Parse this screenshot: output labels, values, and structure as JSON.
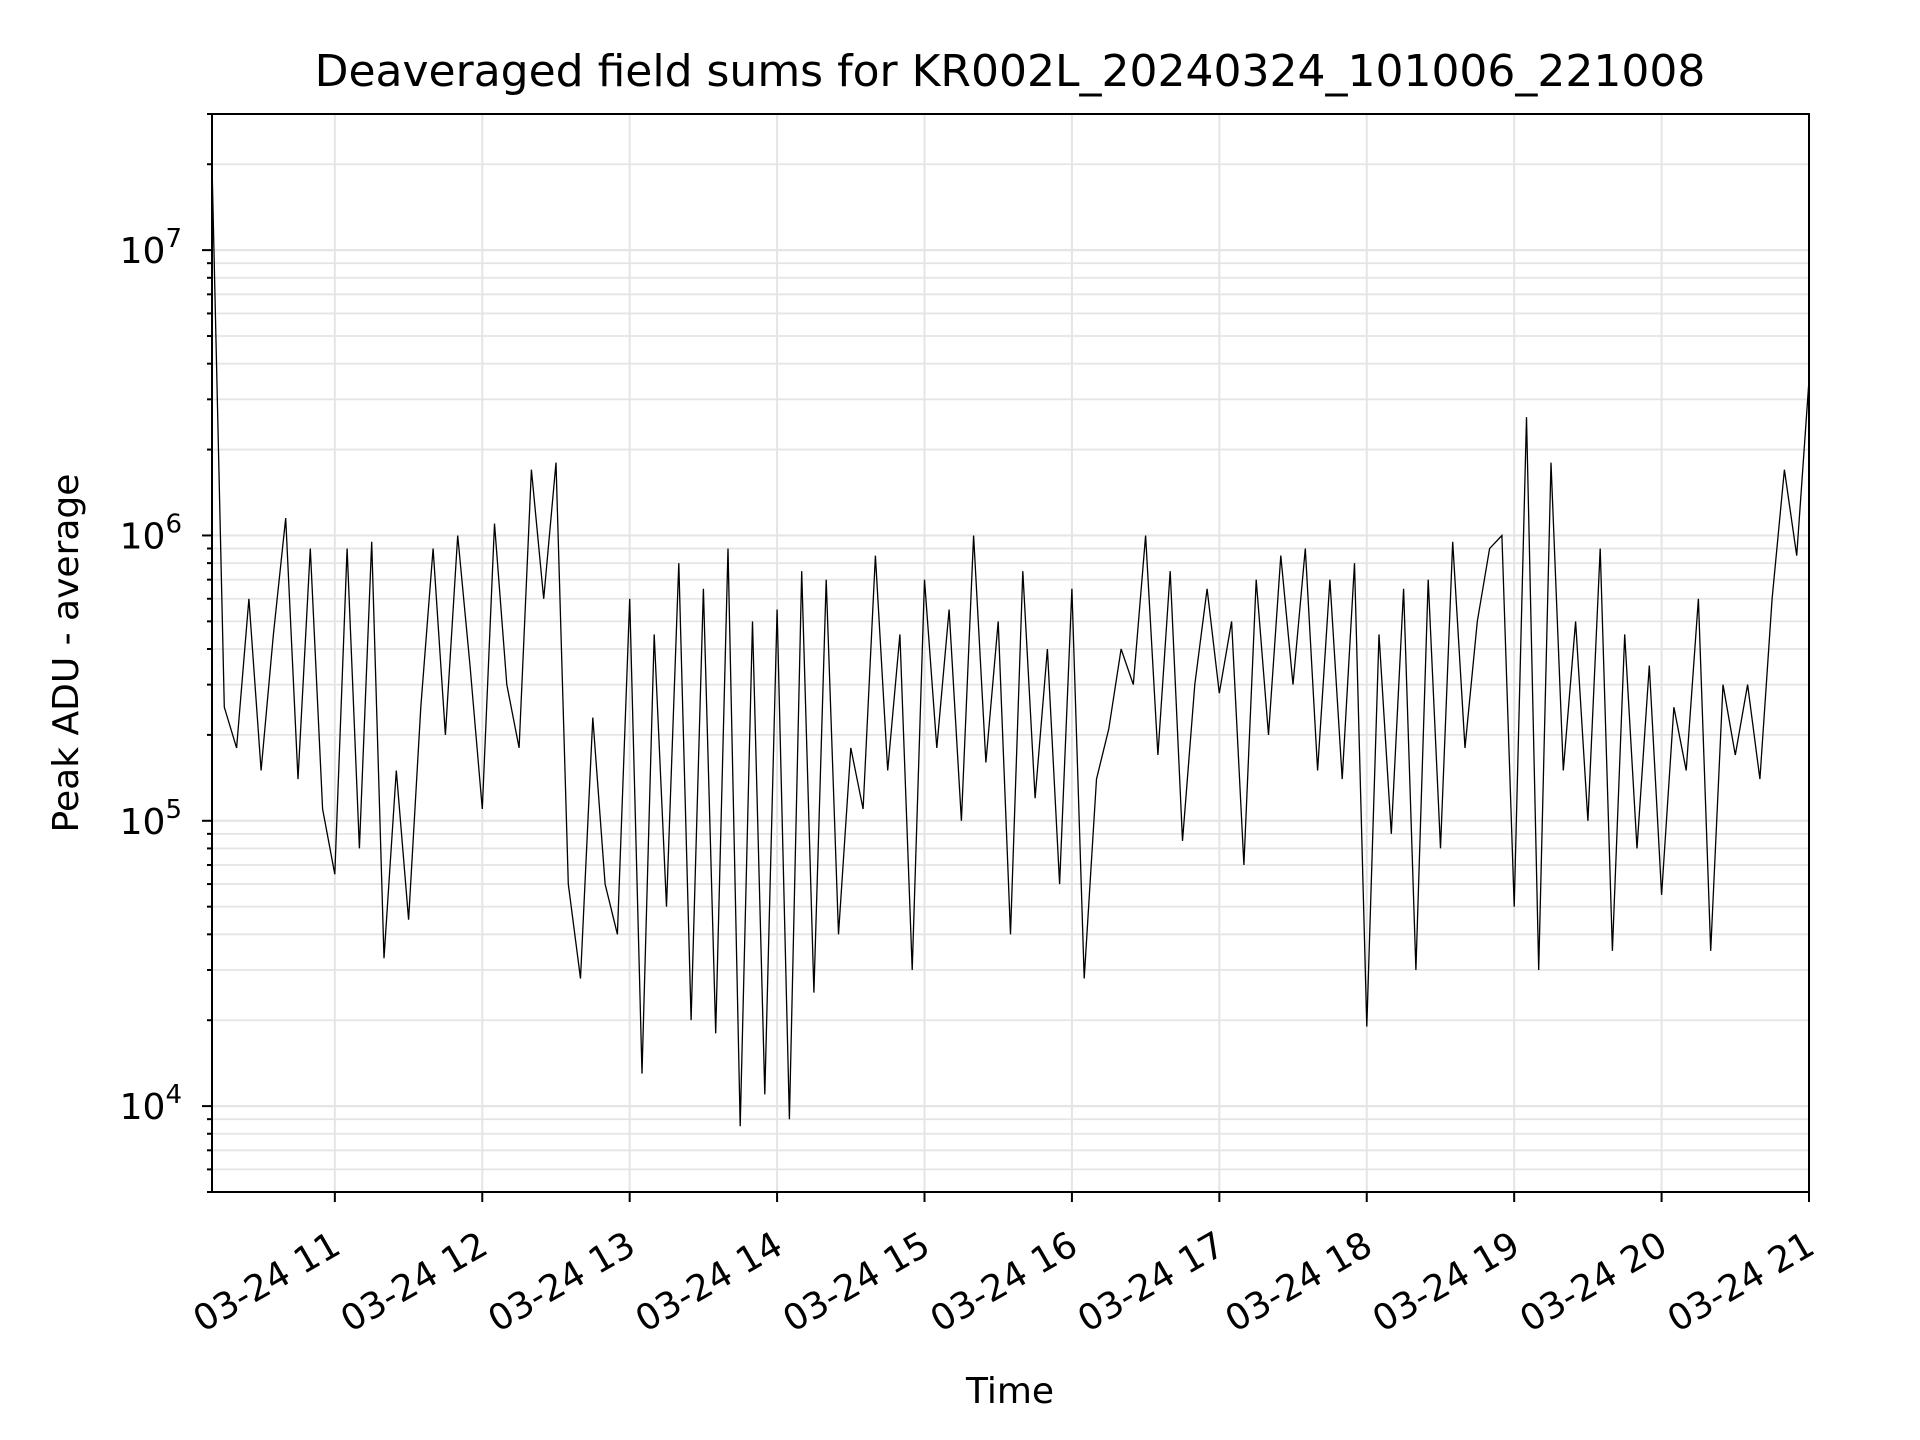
{
  "chart_data": {
    "type": "line",
    "title": "Deaveraged field sums for KR002L_20240324_101006_221008",
    "xlabel": "Time",
    "ylabel": "Peak ADU - average",
    "yscale": "log",
    "ylim": [
      5000,
      30000000
    ],
    "xlim": [
      "2024-03-24 10:10",
      "2024-03-24 21:00"
    ],
    "grid": true,
    "x_ticks": [
      "2024-03-24 11:00",
      "2024-03-24 12:00",
      "2024-03-24 13:00",
      "2024-03-24 14:00",
      "2024-03-24 15:00",
      "2024-03-24 16:00",
      "2024-03-24 17:00",
      "2024-03-24 18:00",
      "2024-03-24 19:00",
      "2024-03-24 20:00",
      "2024-03-24 21:00"
    ],
    "x_tick_labels": [
      "03-24 11",
      "03-24 12",
      "03-24 13",
      "03-24 14",
      "03-24 15",
      "03-24 16",
      "03-24 17",
      "03-24 18",
      "03-24 19",
      "03-24 20",
      "03-24 21"
    ],
    "y_ticks": [
      {
        "value": 10000,
        "base": "10",
        "exp": "4"
      },
      {
        "value": 100000,
        "base": "10",
        "exp": "5"
      },
      {
        "value": 1000000,
        "base": "10",
        "exp": "6"
      },
      {
        "value": 10000000,
        "base": "10",
        "exp": "7"
      }
    ],
    "line_color": "#000000",
    "grid_color": "#e5e5e5",
    "series": [
      {
        "x": [
          "2024-03-24 10:10",
          "2024-03-24 10:15",
          "2024-03-24 10:20",
          "2024-03-24 10:25",
          "2024-03-24 10:30",
          "2024-03-24 10:35",
          "2024-03-24 10:40",
          "2024-03-24 10:45",
          "2024-03-24 10:50",
          "2024-03-24 10:55",
          "2024-03-24 11:00",
          "2024-03-24 11:05",
          "2024-03-24 11:10",
          "2024-03-24 11:15",
          "2024-03-24 11:20",
          "2024-03-24 11:25",
          "2024-03-24 11:30",
          "2024-03-24 11:35",
          "2024-03-24 11:40",
          "2024-03-24 11:45",
          "2024-03-24 11:50",
          "2024-03-24 11:55",
          "2024-03-24 12:00",
          "2024-03-24 12:05",
          "2024-03-24 12:10",
          "2024-03-24 12:15",
          "2024-03-24 12:20",
          "2024-03-24 12:25",
          "2024-03-24 12:30",
          "2024-03-24 12:35",
          "2024-03-24 12:40",
          "2024-03-24 12:45",
          "2024-03-24 12:50",
          "2024-03-24 12:55",
          "2024-03-24 13:00",
          "2024-03-24 13:05",
          "2024-03-24 13:10",
          "2024-03-24 13:15",
          "2024-03-24 13:20",
          "2024-03-24 13:25",
          "2024-03-24 13:30",
          "2024-03-24 13:35",
          "2024-03-24 13:40",
          "2024-03-24 13:45",
          "2024-03-24 13:50",
          "2024-03-24 13:55",
          "2024-03-24 14:00",
          "2024-03-24 14:05",
          "2024-03-24 14:10",
          "2024-03-24 14:15",
          "2024-03-24 14:20",
          "2024-03-24 14:25",
          "2024-03-24 14:30",
          "2024-03-24 14:35",
          "2024-03-24 14:40",
          "2024-03-24 14:45",
          "2024-03-24 14:50",
          "2024-03-24 14:55",
          "2024-03-24 15:00",
          "2024-03-24 15:05",
          "2024-03-24 15:10",
          "2024-03-24 15:15",
          "2024-03-24 15:20",
          "2024-03-24 15:25",
          "2024-03-24 15:30",
          "2024-03-24 15:35",
          "2024-03-24 15:40",
          "2024-03-24 15:45",
          "2024-03-24 15:50",
          "2024-03-24 15:55",
          "2024-03-24 16:00",
          "2024-03-24 16:05",
          "2024-03-24 16:10",
          "2024-03-24 16:15",
          "2024-03-24 16:20",
          "2024-03-24 16:25",
          "2024-03-24 16:30",
          "2024-03-24 16:35",
          "2024-03-24 16:40",
          "2024-03-24 16:45",
          "2024-03-24 16:50",
          "2024-03-24 16:55",
          "2024-03-24 17:00",
          "2024-03-24 17:05",
          "2024-03-24 17:10",
          "2024-03-24 17:15",
          "2024-03-24 17:20",
          "2024-03-24 17:25",
          "2024-03-24 17:30",
          "2024-03-24 17:35",
          "2024-03-24 17:40",
          "2024-03-24 17:45",
          "2024-03-24 17:50",
          "2024-03-24 17:55",
          "2024-03-24 18:00",
          "2024-03-24 18:05",
          "2024-03-24 18:10",
          "2024-03-24 18:15",
          "2024-03-24 18:20",
          "2024-03-24 18:25",
          "2024-03-24 18:30",
          "2024-03-24 18:35",
          "2024-03-24 18:40",
          "2024-03-24 18:45",
          "2024-03-24 18:50",
          "2024-03-24 18:55",
          "2024-03-24 19:00",
          "2024-03-24 19:05",
          "2024-03-24 19:10",
          "2024-03-24 19:15",
          "2024-03-24 19:20",
          "2024-03-24 19:25",
          "2024-03-24 19:30",
          "2024-03-24 19:35",
          "2024-03-24 19:40",
          "2024-03-24 19:45",
          "2024-03-24 19:50",
          "2024-03-24 19:55",
          "2024-03-24 20:00",
          "2024-03-24 20:05",
          "2024-03-24 20:10",
          "2024-03-24 20:15",
          "2024-03-24 20:20",
          "2024-03-24 20:25",
          "2024-03-24 20:30",
          "2024-03-24 20:35",
          "2024-03-24 20:40",
          "2024-03-24 20:45",
          "2024-03-24 20:50",
          "2024-03-24 20:55",
          "2024-03-24 21:00"
        ],
        "y": [
          20000000,
          250000,
          180000,
          600000,
          150000,
          450000,
          1150000,
          140000,
          900000,
          110000,
          65000,
          900000,
          80000,
          950000,
          33000,
          150000,
          45000,
          250000,
          900000,
          200000,
          1000000,
          350000,
          110000,
          1100000,
          300000,
          180000,
          1700000,
          600000,
          1800000,
          60000,
          28000,
          230000,
          60000,
          40000,
          600000,
          13000,
          450000,
          50000,
          800000,
          20000,
          650000,
          18000,
          900000,
          8500,
          500000,
          11000,
          550000,
          9000,
          750000,
          25000,
          700000,
          40000,
          180000,
          110000,
          850000,
          150000,
          450000,
          30000,
          700000,
          180000,
          550000,
          100000,
          1000000,
          160000,
          500000,
          40000,
          750000,
          120000,
          400000,
          60000,
          650000,
          28000,
          140000,
          210000,
          400000,
          300000,
          1000000,
          170000,
          750000,
          85000,
          300000,
          650000,
          280000,
          500000,
          70000,
          700000,
          200000,
          850000,
          300000,
          900000,
          150000,
          700000,
          140000,
          800000,
          19000,
          450000,
          90000,
          650000,
          30000,
          700000,
          80000,
          950000,
          180000,
          500000,
          900000,
          1000000,
          50000,
          2600000,
          30000,
          1800000,
          150000,
          500000,
          100000,
          900000,
          35000,
          450000,
          80000,
          350000,
          55000,
          250000,
          150000,
          600000,
          35000,
          300000,
          170000,
          300000,
          140000,
          600000,
          1700000,
          850000,
          3500000
        ]
      }
    ]
  }
}
